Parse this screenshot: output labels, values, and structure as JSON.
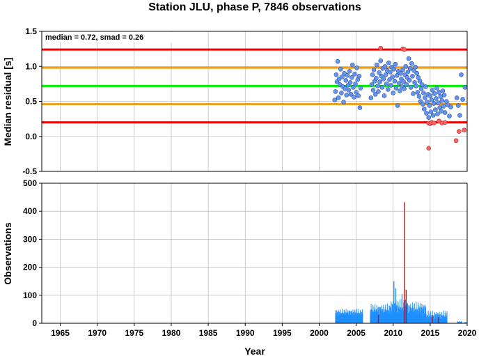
{
  "title": "Station JLU, phase P, 7846 observations",
  "colors": {
    "median_line": "#00ee00",
    "smad_line": "#f0a020",
    "limit_line": "#ee0000",
    "point_normal": "#6495ed",
    "point_outlier": "#ff6060",
    "bar_normal": "#1e90ff",
    "bar_outlier": "#ee0000",
    "grid": "#aaaaaa"
  },
  "chart_data": [
    {
      "type": "scatter",
      "annotation": "median = 0.72, smad = 0.26",
      "ylabel": "Median residual [s]",
      "xlim": [
        1962.5,
        2020.0
      ],
      "ylim": [
        -0.5,
        1.5
      ],
      "yticks": [
        "-0.5",
        "0.0",
        "0.5",
        "1.0",
        "1.5"
      ],
      "hlines": [
        {
          "y": 1.24,
          "kind": "limit"
        },
        {
          "y": 0.98,
          "kind": "smad"
        },
        {
          "y": 0.72,
          "kind": "median"
        },
        {
          "y": 0.46,
          "kind": "smad"
        },
        {
          "y": 0.2,
          "kind": "limit"
        }
      ],
      "points": [
        [
          2002.1,
          0.52
        ],
        [
          2002.2,
          0.64
        ],
        [
          2002.3,
          0.88
        ],
        [
          2002.4,
          0.78
        ],
        [
          2002.5,
          1.07
        ],
        [
          2002.6,
          0.55
        ],
        [
          2002.7,
          0.82
        ],
        [
          2002.8,
          0.74
        ],
        [
          2002.9,
          0.96
        ],
        [
          2003.0,
          0.62
        ],
        [
          2003.1,
          0.85
        ],
        [
          2003.2,
          0.71
        ],
        [
          2003.3,
          0.49
        ],
        [
          2003.4,
          0.9
        ],
        [
          2003.5,
          0.68
        ],
        [
          2003.6,
          0.8
        ],
        [
          2003.7,
          0.59
        ],
        [
          2003.8,
          0.87
        ],
        [
          2003.9,
          0.73
        ],
        [
          2004.0,
          0.66
        ],
        [
          2004.1,
          0.93
        ],
        [
          2004.2,
          0.77
        ],
        [
          2004.3,
          0.6
        ],
        [
          2004.4,
          0.84
        ],
        [
          2004.5,
          1.02
        ],
        [
          2004.6,
          0.7
        ],
        [
          2004.7,
          0.56
        ],
        [
          2004.8,
          0.89
        ],
        [
          2004.9,
          0.75
        ],
        [
          2005.0,
          0.63
        ],
        [
          2005.1,
          0.98
        ],
        [
          2005.2,
          0.81
        ],
        [
          2005.3,
          0.58
        ],
        [
          2005.4,
          0.86
        ],
        [
          2005.5,
          0.41
        ],
        [
          2005.6,
          0.69
        ],
        [
          2007.0,
          0.55
        ],
        [
          2007.1,
          0.74
        ],
        [
          2007.2,
          0.88
        ],
        [
          2007.3,
          0.66
        ],
        [
          2007.4,
          0.95
        ],
        [
          2007.5,
          0.79
        ],
        [
          2007.6,
          0.6
        ],
        [
          2007.7,
          0.83
        ],
        [
          2007.8,
          1.02
        ],
        [
          2007.9,
          0.72
        ],
        [
          2008.0,
          0.64
        ],
        [
          2008.1,
          0.91
        ],
        [
          2008.2,
          0.78
        ],
        [
          2008.3,
          1.08
        ],
        [
          2008.4,
          0.86
        ],
        [
          2008.5,
          0.7
        ],
        [
          2008.6,
          0.97
        ],
        [
          2008.7,
          0.82
        ],
        [
          2008.8,
          0.58
        ],
        [
          2008.9,
          1.0
        ],
        [
          2009.0,
          0.88
        ],
        [
          2009.1,
          0.75
        ],
        [
          2009.2,
          0.94
        ],
        [
          2009.3,
          0.67
        ],
        [
          2009.4,
          1.05
        ],
        [
          2009.5,
          0.81
        ],
        [
          2009.6,
          0.92
        ],
        [
          2009.7,
          0.73
        ],
        [
          2009.8,
          0.99
        ],
        [
          2009.9,
          0.85
        ],
        [
          2010.0,
          0.62
        ],
        [
          2010.1,
          0.96
        ],
        [
          2010.2,
          0.79
        ],
        [
          2010.3,
          1.03
        ],
        [
          2010.4,
          0.69
        ],
        [
          2010.5,
          0.87
        ],
        [
          2010.6,
          0.44
        ],
        [
          2010.7,
          0.93
        ],
        [
          2010.8,
          0.76
        ],
        [
          2010.9,
          0.65
        ],
        [
          2011.0,
          0.9
        ],
        [
          2011.1,
          0.82
        ],
        [
          2011.2,
          0.71
        ],
        [
          2011.3,
          0.95
        ],
        [
          2011.4,
          0.78
        ],
        [
          2011.5,
          0.68
        ],
        [
          2011.6,
          0.88
        ],
        [
          2011.7,
          1.0
        ],
        [
          2011.8,
          0.74
        ],
        [
          2011.9,
          0.84
        ],
        [
          2012.0,
          0.92
        ],
        [
          2012.1,
          1.11
        ],
        [
          2012.2,
          0.8
        ],
        [
          2012.3,
          0.97
        ],
        [
          2012.4,
          0.7
        ],
        [
          2012.5,
          1.04
        ],
        [
          2012.6,
          0.86
        ],
        [
          2012.7,
          0.61
        ],
        [
          2012.8,
          0.94
        ],
        [
          2012.9,
          0.77
        ],
        [
          2013.0,
          0.99
        ],
        [
          2013.1,
          0.72
        ],
        [
          2013.2,
          0.9
        ],
        [
          2013.3,
          0.63
        ],
        [
          2013.4,
          0.84
        ],
        [
          2013.5,
          0.57
        ],
        [
          2013.6,
          0.79
        ],
        [
          2013.7,
          0.5
        ],
        [
          2013.8,
          0.68
        ],
        [
          2013.9,
          0.74
        ],
        [
          2014.0,
          0.46
        ],
        [
          2014.1,
          0.62
        ],
        [
          2014.2,
          0.39
        ],
        [
          2014.3,
          0.55
        ],
        [
          2014.4,
          0.71
        ],
        [
          2014.5,
          0.33
        ],
        [
          2014.6,
          0.49
        ],
        [
          2014.7,
          0.6
        ],
        [
          2014.8,
          0.27
        ],
        [
          2014.9,
          0.44
        ],
        [
          2015.0,
          0.58
        ],
        [
          2015.1,
          0.35
        ],
        [
          2015.2,
          0.52
        ],
        [
          2015.3,
          0.66
        ],
        [
          2015.4,
          0.3
        ],
        [
          2015.5,
          0.47
        ],
        [
          2015.6,
          0.61
        ],
        [
          2015.7,
          0.38
        ],
        [
          2015.8,
          0.54
        ],
        [
          2015.9,
          0.69
        ],
        [
          2016.0,
          0.32
        ],
        [
          2016.1,
          0.48
        ],
        [
          2016.2,
          0.63
        ],
        [
          2016.3,
          0.41
        ],
        [
          2016.4,
          0.57
        ],
        [
          2016.5,
          0.36
        ],
        [
          2016.6,
          0.51
        ],
        [
          2016.7,
          0.65
        ],
        [
          2016.8,
          0.43
        ],
        [
          2016.9,
          0.59
        ],
        [
          2017.0,
          0.34
        ],
        [
          2017.2,
          0.5
        ],
        [
          2017.4,
          0.45
        ],
        [
          2017.6,
          0.29
        ],
        [
          2017.8,
          0.42
        ],
        [
          2018.6,
          0.55
        ],
        [
          2018.8,
          0.44
        ],
        [
          2019.0,
          0.3
        ],
        [
          2019.2,
          0.88
        ],
        [
          2019.4,
          0.53
        ],
        [
          2019.7,
          0.7
        ]
      ],
      "outliers": [
        [
          2008.3,
          1.26
        ],
        [
          2011.3,
          1.25
        ],
        [
          2011.5,
          1.24
        ],
        [
          2014.8,
          0.19
        ],
        [
          2015.0,
          0.18
        ],
        [
          2015.2,
          0.2
        ],
        [
          2015.5,
          0.19
        ],
        [
          2016.2,
          0.22
        ],
        [
          2016.6,
          0.19
        ],
        [
          2017.0,
          0.2
        ],
        [
          2014.8,
          -0.17
        ],
        [
          2018.5,
          -0.06
        ],
        [
          2018.9,
          0.07
        ],
        [
          2019.6,
          0.09
        ]
      ]
    },
    {
      "type": "bar",
      "xlabel": "Year",
      "ylabel": "Observations",
      "xlim": [
        1962.5,
        2020.0
      ],
      "ylim": [
        0,
        500
      ],
      "xticks": [
        "1965",
        "1970",
        "1975",
        "1980",
        "1985",
        "1990",
        "1995",
        "2000",
        "2005",
        "2010",
        "2015",
        "2020"
      ],
      "yticks": [
        "0",
        "100",
        "200",
        "300",
        "400",
        "500"
      ],
      "segments": [
        {
          "start": 2002.2,
          "end": 2005.9,
          "base": 38,
          "amp": 14
        },
        {
          "start": 2006.9,
          "end": 2009.6,
          "base": 48,
          "amp": 22
        },
        {
          "start": 2009.6,
          "end": 2012.0,
          "base": 58,
          "amp": 30
        },
        {
          "start": 2012.0,
          "end": 2014.4,
          "base": 52,
          "amp": 26
        },
        {
          "start": 2014.4,
          "end": 2017.3,
          "base": 28,
          "amp": 18
        },
        {
          "start": 2018.7,
          "end": 2019.3,
          "base": 5,
          "amp": 3
        },
        {
          "start": 2019.6,
          "end": 2019.9,
          "base": 3,
          "amp": 2
        }
      ],
      "bar_values": [
        {
          "x": 2010.1,
          "value": 150
        },
        {
          "x": 2010.35,
          "value": 125
        },
        {
          "x": 2011.2,
          "value": 105
        }
      ],
      "outlier_bars": [
        {
          "x": 2011.55,
          "value": 432
        },
        {
          "x": 2011.75,
          "value": 120
        },
        {
          "x": 2008.0,
          "value": 30
        },
        {
          "x": 2015.3,
          "value": 28
        },
        {
          "x": 2016.1,
          "value": 22
        }
      ]
    }
  ]
}
